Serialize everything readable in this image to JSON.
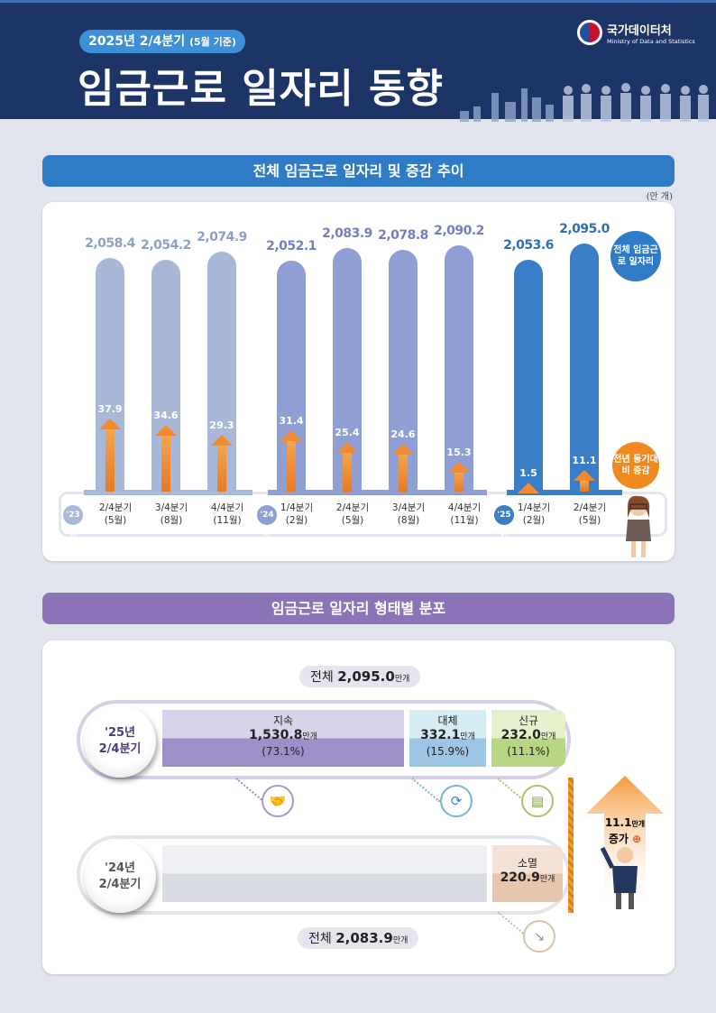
{
  "header": {
    "subtitle": "2025년 2/4분기",
    "subtitle_note": "(5월 기준)",
    "title": "임금근로 일자리 동향",
    "logo_name": "국가데이터처",
    "logo_en": "Ministry of Data and Statistics"
  },
  "section1": {
    "title": "전체 임금근로 일자리 및 증감 추이",
    "unit": "(만 개)",
    "callout_total": "전체 임금근로 일자리",
    "callout_change": "전년 동기대비 증감"
  },
  "chart_data": {
    "type": "bar",
    "title": "전체 임금근로 일자리 및 증감 추이",
    "unit": "(만 개)",
    "groups": [
      {
        "label": "'23년",
        "count": 3
      },
      {
        "label": "'24년",
        "count": 4
      },
      {
        "label": "'25년",
        "count": 2
      }
    ],
    "categories": [
      "2/4분기",
      "3/4분기",
      "4/4분기",
      "1/4분기",
      "2/4분기",
      "3/4분기",
      "4/4분기",
      "1/4분기",
      "2/4분기"
    ],
    "category_months": [
      "(5월)",
      "(8월)",
      "(11월)",
      "(2월)",
      "(5월)",
      "(8월)",
      "(11월)",
      "(2월)",
      "(5월)"
    ],
    "series": [
      {
        "name": "전체 임금근로 일자리",
        "values": [
          2058.4,
          2054.2,
          2074.9,
          2052.1,
          2083.9,
          2078.8,
          2090.2,
          2053.6,
          2095.0
        ],
        "labels": [
          "2,058.4",
          "2,054.2",
          "2,074.9",
          "2,052.1",
          "2,083.9",
          "2,078.8",
          "2,090.2",
          "2,053.6",
          "2,095.0"
        ]
      },
      {
        "name": "전년 동기대비 증감",
        "values": [
          37.9,
          34.6,
          29.3,
          31.4,
          25.4,
          24.6,
          15.3,
          1.5,
          11.1
        ],
        "labels": [
          "37.9",
          "34.6",
          "29.3",
          "31.4",
          "25.4",
          "24.6",
          "15.3",
          "1.5",
          "11.1"
        ]
      }
    ],
    "colors": {
      "'23년": "#a9b8d6",
      "'24년": "#8f9fd3",
      "'25년": "#3a7ec8",
      "change": "#f28a2e"
    }
  },
  "section2": {
    "title": "임금근로 일자리 형태별 분포",
    "unit": "만개",
    "y25": {
      "label1": "'25년",
      "label2": "2/4분기",
      "total_label": "전체",
      "total": "2,095.0"
    },
    "y24": {
      "label1": "'24년",
      "label2": "2/4분기",
      "total_label": "전체",
      "total": "2,083.9"
    },
    "segments": [
      {
        "name": "지속",
        "value": "1,530.8",
        "pct": "(73.1%)"
      },
      {
        "name": "대체",
        "value": "332.1",
        "pct": "(15.9%)"
      },
      {
        "name": "신규",
        "value": "232.0",
        "pct": "(11.1%)"
      },
      {
        "name": "소멸",
        "value": "220.9"
      }
    ],
    "increase": {
      "value": "11.1",
      "unit": "만개",
      "label": "증가"
    }
  }
}
